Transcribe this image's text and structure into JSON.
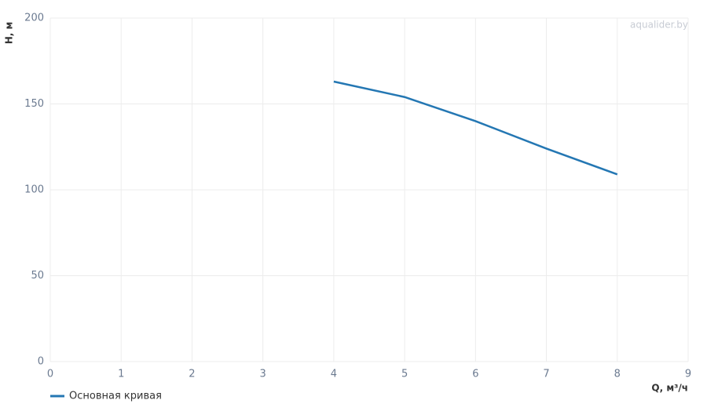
{
  "chart_data": {
    "type": "line",
    "watermark": "aqualider.by",
    "x_label": "Q, м³/ч",
    "y_label": "H, м",
    "x": [
      4,
      5,
      6,
      7,
      8
    ],
    "series": [
      {
        "name": "Основная кривая",
        "color": "#2477b3",
        "values": [
          163,
          154,
          140,
          124,
          109
        ]
      }
    ],
    "xlim": [
      0,
      9
    ],
    "xticks": [
      0,
      1,
      2,
      3,
      4,
      5,
      6,
      7,
      8,
      9
    ],
    "ylim": [
      0,
      200
    ],
    "yticks": [
      0,
      50,
      100,
      150,
      200
    ],
    "grid": true
  }
}
